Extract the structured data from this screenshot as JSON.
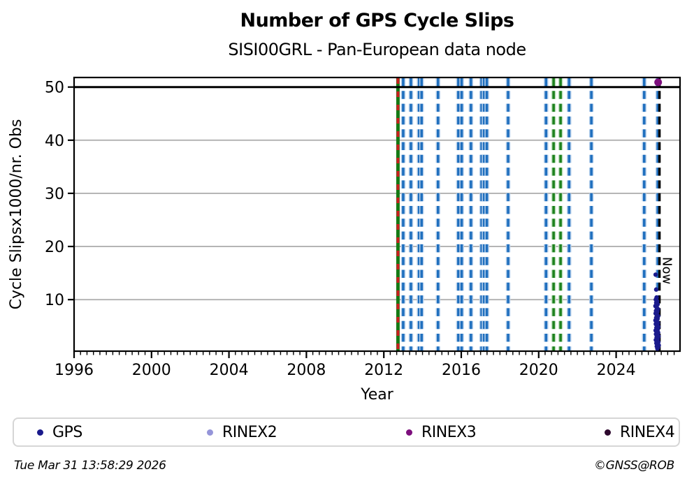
{
  "chart_data": {
    "type": "scatter",
    "title": "Number of GPS Cycle Slips",
    "subtitle": "SISI00GRL - Pan-European data node",
    "xlabel": "Year",
    "ylabel": "Cycle Slipsx1000/nr. Obs",
    "xlim": [
      1996,
      2027.3
    ],
    "ylim": [
      0.3,
      51.8
    ],
    "xticks": [
      1996,
      2000,
      2004,
      2008,
      2012,
      2016,
      2020,
      2024
    ],
    "yticks": [
      10,
      20,
      30,
      40,
      50
    ],
    "minor_xtick_step": 0.3333,
    "grid": {
      "horizontal": true,
      "color": "#b0b0b0"
    },
    "clip_line": {
      "y": 50,
      "color": "#000000"
    },
    "now_line": {
      "x": 2026.24,
      "label": "Now",
      "color": "#000000",
      "style": "dashed"
    },
    "event_line_colors": {
      "blue": {
        "core": "#1f6fbe",
        "halo": "#b6cfeb"
      },
      "green": {
        "core": "#1e821e",
        "halo": "#bcdebc"
      },
      "green_red": {
        "solid": "#157a15",
        "dash": "#cc2020"
      }
    },
    "event_lines": [
      {
        "x": 2012.73,
        "type": "green-solid-red-dashed"
      },
      {
        "x": 2013.0,
        "type": "blue-dashed"
      },
      {
        "x": 2013.4,
        "type": "blue-dashed"
      },
      {
        "x": 2013.82,
        "type": "blue-dashed"
      },
      {
        "x": 2013.95,
        "type": "blue-dashed"
      },
      {
        "x": 2014.8,
        "type": "blue-dashed"
      },
      {
        "x": 2015.85,
        "type": "blue-dashed"
      },
      {
        "x": 2016.02,
        "type": "blue-dashed"
      },
      {
        "x": 2016.5,
        "type": "blue-dashed"
      },
      {
        "x": 2017.05,
        "type": "blue-dashed"
      },
      {
        "x": 2017.18,
        "type": "blue-dashed"
      },
      {
        "x": 2017.32,
        "type": "blue-dashed"
      },
      {
        "x": 2018.42,
        "type": "blue-dashed"
      },
      {
        "x": 2020.38,
        "type": "blue-dashed"
      },
      {
        "x": 2020.77,
        "type": "green-dashed"
      },
      {
        "x": 2021.13,
        "type": "green-dashed"
      },
      {
        "x": 2021.57,
        "type": "blue-dashed"
      },
      {
        "x": 2022.72,
        "type": "blue-dashed"
      },
      {
        "x": 2025.45,
        "type": "blue-dashed"
      },
      {
        "x": 2026.15,
        "type": "blue-dashed"
      }
    ],
    "series": [
      {
        "name": "GPS",
        "color": "#1a1a8c",
        "marker_radius": 3.2,
        "points": [
          [
            2026.04,
            14.7
          ],
          [
            2026.07,
            11.9
          ],
          [
            2026.09,
            10.4
          ],
          [
            2026.05,
            10.0
          ],
          [
            2026.12,
            9.7
          ],
          [
            2026.07,
            9.4
          ],
          [
            2026.14,
            9.1
          ],
          [
            2026.03,
            8.8
          ],
          [
            2026.1,
            8.5
          ],
          [
            2026.16,
            8.2
          ],
          [
            2026.06,
            7.9
          ],
          [
            2026.13,
            7.7
          ],
          [
            2026.04,
            7.4
          ],
          [
            2026.11,
            7.1
          ],
          [
            2026.17,
            6.9
          ],
          [
            2026.07,
            6.6
          ],
          [
            2026.14,
            6.4
          ],
          [
            2026.03,
            6.1
          ],
          [
            2026.1,
            5.9
          ],
          [
            2026.16,
            5.6
          ],
          [
            2026.05,
            5.4
          ],
          [
            2026.12,
            5.1
          ],
          [
            2026.18,
            4.9
          ],
          [
            2026.08,
            4.7
          ],
          [
            2026.15,
            4.4
          ],
          [
            2026.04,
            4.2
          ],
          [
            2026.11,
            4.0
          ],
          [
            2026.17,
            3.8
          ],
          [
            2026.06,
            3.5
          ],
          [
            2026.13,
            3.3
          ],
          [
            2026.19,
            3.1
          ],
          [
            2026.09,
            2.9
          ],
          [
            2026.15,
            2.6
          ],
          [
            2026.05,
            2.4
          ],
          [
            2026.12,
            2.2
          ],
          [
            2026.18,
            2.0
          ],
          [
            2026.08,
            1.8
          ],
          [
            2026.14,
            1.6
          ],
          [
            2026.2,
            1.4
          ],
          [
            2026.1,
            1.2
          ],
          [
            2026.16,
            1.0
          ],
          [
            2026.13,
            0.8
          ]
        ]
      },
      {
        "name": "RINEX2",
        "color": "#9595d9",
        "marker_radius": 3.2,
        "points": []
      },
      {
        "name": "RINEX3",
        "color": "#7d0f7d",
        "marker_radius": 5.5,
        "points": [
          [
            2026.17,
            50.9
          ]
        ]
      },
      {
        "name": "RINEX4",
        "color": "#2e082e",
        "marker_radius": 3.2,
        "points": []
      }
    ]
  },
  "legend": {
    "items": [
      {
        "label": "GPS",
        "color": "#1a1a8c"
      },
      {
        "label": "RINEX2",
        "color": "#9595d9"
      },
      {
        "label": "RINEX3",
        "color": "#7d0f7d"
      },
      {
        "label": "RINEX4",
        "color": "#2e082e"
      }
    ]
  },
  "footer": {
    "timestamp": "Tue Mar 31 13:58:29 2026",
    "copyright": "©GNSS@ROB"
  }
}
